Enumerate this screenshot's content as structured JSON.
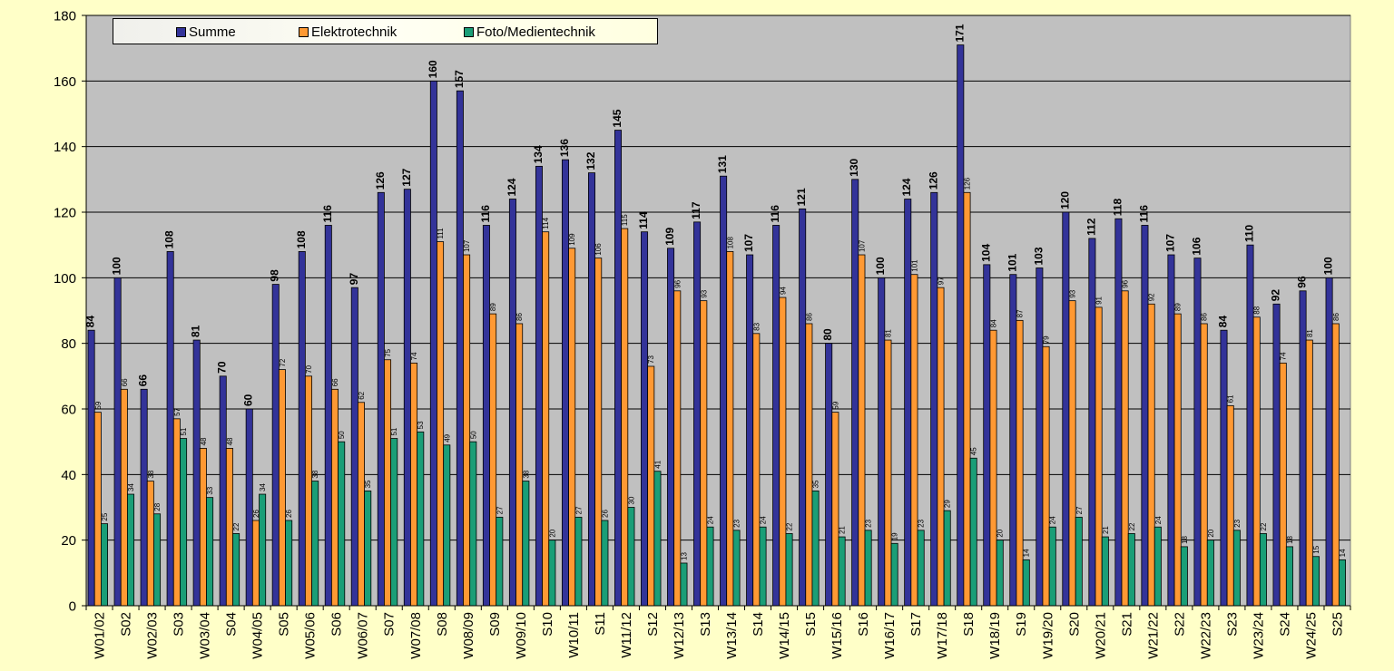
{
  "chart_data": {
    "type": "bar",
    "title": "",
    "xlabel": "",
    "ylabel": "",
    "ylim": [
      0,
      180
    ],
    "yticks": [
      0,
      20,
      40,
      60,
      80,
      100,
      120,
      140,
      160,
      180
    ],
    "grid": true,
    "legend_position": "top-left",
    "plot_background": "#c0c0c0",
    "categories": [
      "W01/02",
      "S02",
      "W02/03",
      "S03",
      "W03/04",
      "S04",
      "W04/05",
      "S05",
      "W05/06",
      "S06",
      "W06/07",
      "S07",
      "W07/08",
      "S08",
      "W08/09",
      "S09",
      "W09/10",
      "S10",
      "W10/11",
      "S11",
      "W11/12",
      "S12",
      "W12/13",
      "S13",
      "W13/14",
      "S14",
      "W14/15",
      "S15",
      "W15/16",
      "S16",
      "W16/17",
      "S17",
      "W17/18",
      "S18",
      "W18/19",
      "S19",
      "W19/20",
      "S20",
      "W20/21",
      "S21",
      "W21/22",
      "S22",
      "W22/23",
      "S23",
      "W23/24",
      "S24",
      "W24/25",
      "S25"
    ],
    "series": [
      {
        "name": "Summe",
        "color": "#333399",
        "values": [
          84,
          100,
          66,
          108,
          81,
          70,
          60,
          98,
          108,
          116,
          97,
          126,
          127,
          160,
          157,
          116,
          124,
          134,
          136,
          132,
          145,
          114,
          109,
          117,
          131,
          107,
          116,
          121,
          80,
          130,
          100,
          124,
          126,
          171,
          104,
          101,
          103,
          120,
          112,
          118,
          116,
          107,
          106,
          84,
          110,
          92,
          96,
          100
        ]
      },
      {
        "name": "Elektrotechnik",
        "color": "#ff9933",
        "values": [
          59,
          66,
          38,
          57,
          48,
          48,
          26,
          72,
          70,
          66,
          62,
          75,
          74,
          111,
          107,
          89,
          86,
          114,
          109,
          106,
          115,
          73,
          96,
          93,
          108,
          83,
          94,
          86,
          59,
          107,
          81,
          101,
          97,
          126,
          84,
          87,
          79,
          93,
          91,
          96,
          92,
          89,
          86,
          61,
          88,
          74,
          81,
          86
        ]
      },
      {
        "name": "Foto/Medientechnik",
        "color": "#1a9e77",
        "values": [
          25,
          34,
          28,
          51,
          33,
          22,
          34,
          26,
          38,
          50,
          35,
          51,
          53,
          49,
          50,
          27,
          38,
          20,
          27,
          26,
          30,
          41,
          13,
          24,
          23,
          24,
          22,
          35,
          21,
          23,
          19,
          23,
          29,
          45,
          20,
          14,
          24,
          27,
          21,
          22,
          24,
          18,
          20,
          23,
          22,
          18,
          15,
          14
        ]
      }
    ]
  }
}
